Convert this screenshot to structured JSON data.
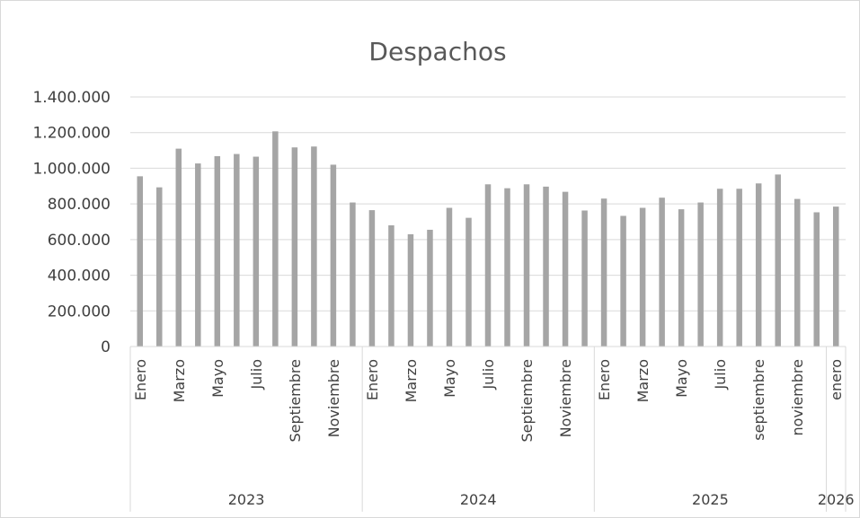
{
  "chart_data": {
    "type": "bar",
    "title": "Despachos",
    "xlabel": "",
    "ylabel": "",
    "ylim": [
      0,
      1400000
    ],
    "yticks": [
      0,
      200000,
      400000,
      600000,
      800000,
      1000000,
      1200000,
      1400000
    ],
    "ytick_labels": [
      "0",
      "200.000",
      "400.000",
      "600.000",
      "800.000",
      "1.000.000",
      "1.200.000",
      "1.400.000"
    ],
    "grid": true,
    "bar_color": "#a5a5a5",
    "groups": [
      {
        "label": "2023",
        "months": [
          "Enero",
          "",
          "Marzo",
          "",
          "Mayo",
          "",
          "Julio",
          "",
          "Septiembre",
          "",
          "Noviembre",
          ""
        ]
      },
      {
        "label": "2024",
        "months": [
          "Enero",
          "",
          "Marzo",
          "",
          "Mayo",
          "",
          "Julio",
          "",
          "Septiembre",
          "",
          "Noviembre",
          ""
        ]
      },
      {
        "label": "2025",
        "months": [
          "Enero",
          "",
          "Marzo",
          "",
          "Mayo",
          "",
          "Julio",
          "",
          "septiembre",
          "",
          "noviembre",
          ""
        ]
      },
      {
        "label": "2026",
        "months": [
          "enero"
        ]
      }
    ],
    "values": [
      955000,
      893000,
      1110000,
      1027000,
      1068000,
      1080000,
      1065000,
      1207000,
      1117000,
      1122000,
      1020000,
      808000,
      765000,
      680000,
      630000,
      655000,
      778000,
      722000,
      910000,
      888000,
      910000,
      897000,
      868000,
      763000,
      830000,
      733000,
      778000,
      835000,
      770000,
      808000,
      885000,
      885000,
      915000,
      965000,
      828000,
      753000,
      785000
    ]
  }
}
